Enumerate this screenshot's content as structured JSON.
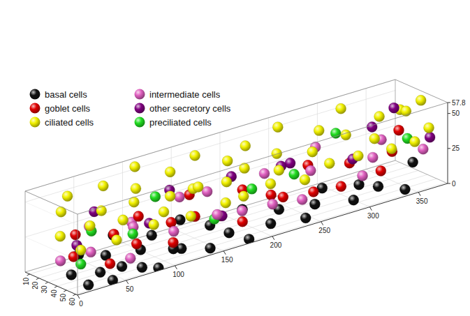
{
  "chart_data": {
    "type": "scatter3d",
    "legend": "top-left",
    "grid": true,
    "xlim": [
      0,
      380
    ],
    "xticks": [
      0,
      50,
      100,
      150,
      200,
      250,
      300,
      350
    ],
    "ylim": [
      5,
      62
    ],
    "yticks": [
      10,
      20,
      30,
      40,
      50,
      60
    ],
    "zlim": [
      0,
      57.8
    ],
    "zticks": [
      0,
      25,
      50,
      57.8
    ],
    "series": [
      {
        "name": "basal cells",
        "color": "#111111",
        "x": [
          5,
          15,
          22,
          30,
          38,
          45,
          55,
          62,
          70,
          78,
          85,
          95,
          105,
          118,
          128,
          140,
          152,
          165,
          178,
          190,
          205,
          220,
          238,
          255,
          270,
          290,
          305,
          320,
          340,
          365
        ],
        "y": [
          50,
          58,
          40,
          55,
          60,
          45,
          52,
          35,
          58,
          48,
          60,
          42,
          55,
          50,
          38,
          58,
          45,
          52,
          60,
          40,
          55,
          48,
          58,
          50,
          42,
          55,
          45,
          50,
          58,
          40
        ],
        "z": [
          10,
          3,
          18,
          8,
          2,
          14,
          6,
          22,
          4,
          12,
          1,
          17,
          9,
          5,
          20,
          3,
          13,
          7,
          2,
          15,
          6,
          11,
          4,
          8,
          14,
          5,
          10,
          7,
          3,
          12
        ]
      },
      {
        "name": "goblet cells",
        "color": "#e00000",
        "x": [
          12,
          28,
          40,
          58,
          72,
          88,
          102,
          115,
          130,
          145,
          160,
          175,
          192,
          210,
          228,
          246,
          262,
          280,
          300,
          318,
          338,
          360
        ],
        "y": [
          45,
          30,
          55,
          40,
          50,
          35,
          58,
          42,
          52,
          30,
          48,
          56,
          38,
          50,
          44,
          58,
          35,
          52,
          40,
          55,
          46,
          30
        ],
        "z": [
          20,
          28,
          12,
          25,
          18,
          30,
          15,
          22,
          26,
          32,
          19,
          14,
          28,
          24,
          17,
          21,
          30,
          16,
          25,
          20,
          27,
          33
        ]
      },
      {
        "name": "ciliated cells",
        "color": "#f2f200",
        "x": [
          3,
          10,
          18,
          26,
          34,
          42,
          50,
          58,
          66,
          74,
          82,
          90,
          98,
          106,
          114,
          122,
          130,
          138,
          146,
          154,
          162,
          170,
          178,
          186,
          194,
          202,
          210,
          220,
          230,
          240,
          250,
          260,
          270,
          280,
          290,
          300,
          310,
          320,
          330,
          340,
          350,
          358,
          366,
          372,
          378
        ],
        "y": [
          40,
          55,
          25,
          48,
          15,
          60,
          35,
          50,
          20,
          45,
          58,
          30,
          52,
          12,
          42,
          56,
          25,
          47,
          33,
          60,
          18,
          44,
          54,
          28,
          38,
          58,
          22,
          48,
          35,
          55,
          15,
          42,
          50,
          28,
          60,
          36,
          20,
          46,
          54,
          30,
          58,
          40,
          25,
          50,
          35
        ],
        "z": [
          35,
          28,
          45,
          40,
          50,
          30,
          42,
          38,
          52,
          46,
          32,
          48,
          36,
          55,
          41,
          29,
          50,
          44,
          37,
          33,
          53,
          40,
          31,
          47,
          43,
          36,
          51,
          39,
          45,
          30,
          54,
          42,
          34,
          49,
          38,
          44,
          56,
          40,
          33,
          47,
          35,
          50,
          45,
          38,
          52
        ]
      },
      {
        "name": "intermediate cells",
        "color": "#e060c0",
        "x": [
          8,
          25,
          44,
          60,
          78,
          95,
          112,
          132,
          150,
          168,
          186,
          204,
          222,
          242,
          262,
          282,
          302,
          322,
          344,
          368
        ],
        "y": [
          35,
          50,
          28,
          56,
          40,
          20,
          48,
          33,
          55,
          25,
          44,
          58,
          30,
          50,
          38,
          22,
          52,
          42,
          28,
          48
        ],
        "z": [
          15,
          22,
          30,
          12,
          26,
          20,
          18,
          34,
          24,
          28,
          16,
          21,
          31,
          14,
          27,
          35,
          19,
          25,
          29,
          23
        ]
      },
      {
        "name": "other secretory cells",
        "color": "#800080",
        "x": [
          20,
          52,
          85,
          120,
          155,
          190,
          225,
          258,
          292,
          325,
          355,
          375
        ],
        "y": [
          40,
          25,
          50,
          35,
          55,
          28,
          45,
          20,
          52,
          38,
          30,
          48
        ],
        "z": [
          25,
          38,
          30,
          42,
          22,
          35,
          40,
          28,
          33,
          45,
          50,
          30
        ]
      },
      {
        "name": "preciliated cells",
        "color": "#22dd22",
        "x": [
          10,
          35,
          70,
          110,
          150,
          195,
          245,
          300,
          350
        ],
        "y": [
          55,
          40,
          48,
          30,
          52,
          45,
          38,
          25,
          50
        ],
        "z": [
          18,
          32,
          25,
          38,
          20,
          30,
          28,
          42,
          35
        ]
      }
    ]
  }
}
